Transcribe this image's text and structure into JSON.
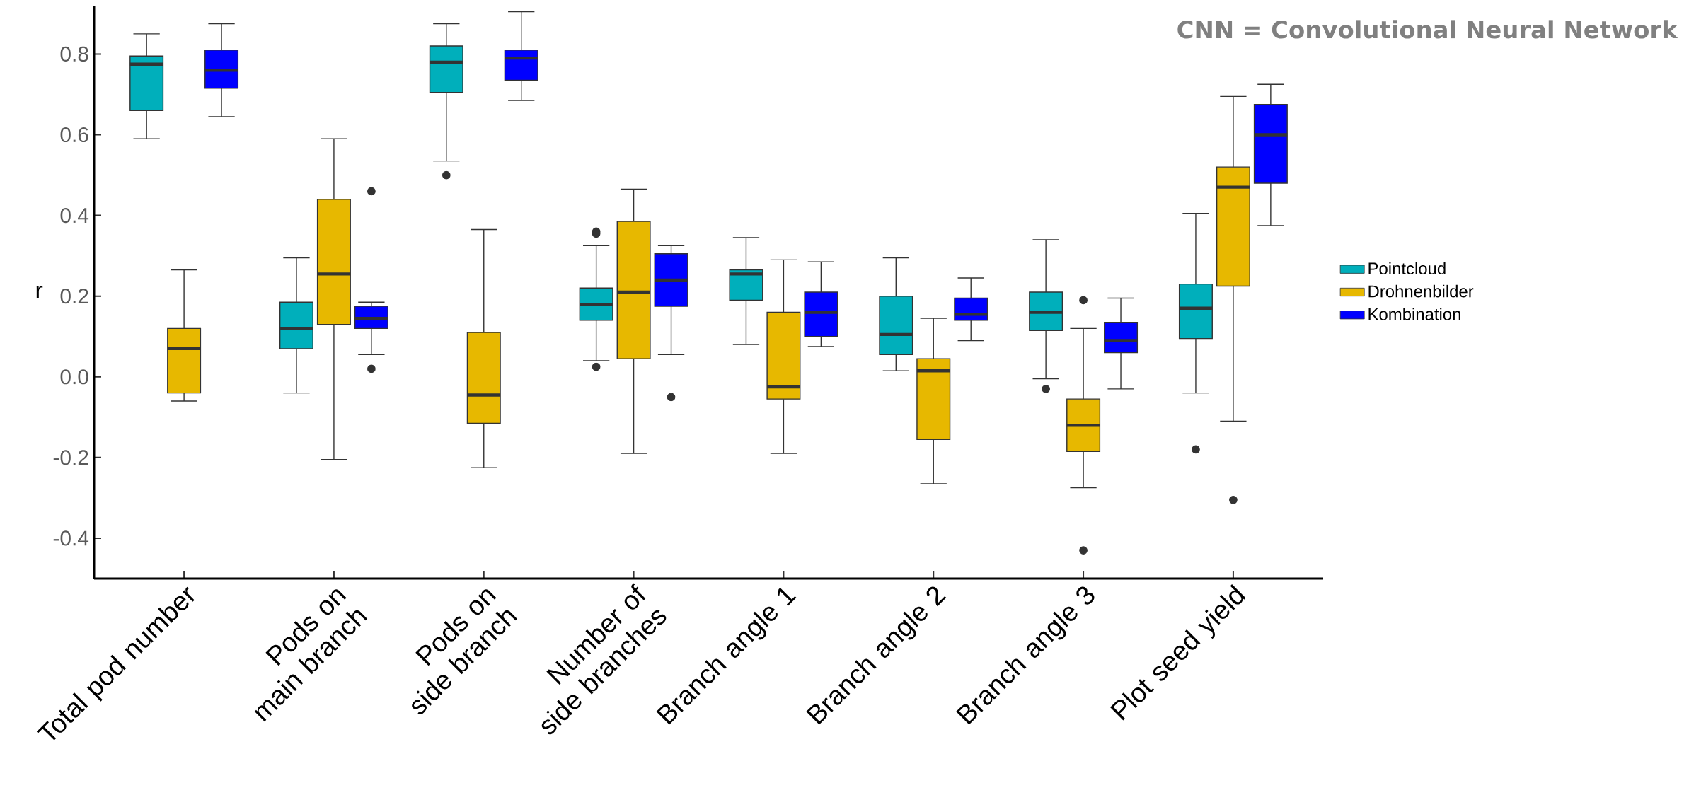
{
  "chart_data": {
    "type": "box",
    "ylabel": "r",
    "annotations": [
      "CNN = Convolutional Neural Network"
    ],
    "categories": [
      "Total pod number",
      "Pods on main branch",
      "Pods on side branch",
      "Number of side branches",
      "Branch angle 1",
      "Branch angle 2",
      "Branch angle 3",
      "Plot seed yield"
    ],
    "ylim": [
      -0.5,
      0.92
    ],
    "yticks": [
      -0.4,
      -0.2,
      {
        "value": 0,
        "label": "0.0"
      },
      0.2,
      0.4,
      0.6,
      0.8
    ],
    "legend": "right",
    "marker": "circle",
    "series": [
      {
        "name": "Pointcloud",
        "color": "#00afbb",
        "boxes": [
          {
            "low": 0.59,
            "q1": 0.66,
            "median": 0.775,
            "q3": 0.795,
            "high": 0.85
          },
          {
            "low": -0.04,
            "q1": 0.07,
            "median": 0.12,
            "q3": 0.185,
            "high": 0.295
          },
          {
            "low": 0.535,
            "q1": 0.705,
            "median": 0.78,
            "q3": 0.82,
            "high": 0.875,
            "outliers": [
              0.5
            ]
          },
          {
            "low": 0.04,
            "q1": 0.14,
            "median": 0.18,
            "q3": 0.22,
            "high": 0.325,
            "outliers": [
              0.36,
              0.355,
              0.025
            ]
          },
          {
            "low": 0.08,
            "q1": 0.19,
            "median": 0.255,
            "q3": 0.265,
            "high": 0.345
          },
          {
            "low": 0.015,
            "q1": 0.055,
            "median": 0.105,
            "q3": 0.2,
            "high": 0.295
          },
          {
            "low": -0.005,
            "q1": 0.115,
            "median": 0.16,
            "q3": 0.21,
            "high": 0.34,
            "outliers": [
              -0.03
            ]
          },
          {
            "low": -0.04,
            "q1": 0.095,
            "median": 0.17,
            "q3": 0.23,
            "high": 0.405,
            "outliers": [
              -0.18
            ]
          }
        ]
      },
      {
        "name": "Drohnenbilder",
        "color": "#e7b800",
        "boxes": [
          {
            "low": -0.06,
            "q1": -0.04,
            "median": 0.07,
            "q3": 0.12,
            "high": 0.265
          },
          {
            "low": -0.205,
            "q1": 0.13,
            "median": 0.255,
            "q3": 0.44,
            "high": 0.59
          },
          {
            "low": -0.225,
            "q1": -0.115,
            "median": -0.045,
            "q3": 0.11,
            "high": 0.365
          },
          {
            "low": -0.19,
            "q1": 0.045,
            "median": 0.21,
            "q3": 0.385,
            "high": 0.465
          },
          {
            "low": -0.19,
            "q1": -0.055,
            "median": -0.025,
            "q3": 0.16,
            "high": 0.29
          },
          {
            "low": -0.265,
            "q1": -0.155,
            "median": 0.015,
            "q3": 0.045,
            "high": 0.145
          },
          {
            "low": -0.275,
            "q1": -0.185,
            "median": -0.12,
            "q3": -0.055,
            "high": 0.12,
            "outliers": [
              0.19,
              -0.43
            ]
          },
          {
            "low": -0.11,
            "q1": 0.225,
            "median": 0.47,
            "q3": 0.52,
            "high": 0.695,
            "outliers": [
              -0.305
            ]
          }
        ]
      },
      {
        "name": "Kombination",
        "color": "#0000ff",
        "boxes": [
          {
            "low": 0.645,
            "q1": 0.715,
            "median": 0.76,
            "q3": 0.81,
            "high": 0.875
          },
          {
            "low": 0.055,
            "q1": 0.12,
            "median": 0.145,
            "q3": 0.175,
            "high": 0.185,
            "outliers": [
              0.46,
              0.02
            ]
          },
          {
            "low": 0.685,
            "q1": 0.735,
            "median": 0.79,
            "q3": 0.81,
            "high": 0.905
          },
          {
            "low": 0.055,
            "q1": 0.175,
            "median": 0.24,
            "q3": 0.305,
            "high": 0.325,
            "outliers": [
              -0.05
            ]
          },
          {
            "low": 0.075,
            "q1": 0.1,
            "median": 0.16,
            "q3": 0.21,
            "high": 0.285
          },
          {
            "low": 0.09,
            "q1": 0.14,
            "median": 0.155,
            "q3": 0.195,
            "high": 0.245
          },
          {
            "low": -0.03,
            "q1": 0.06,
            "median": 0.09,
            "q3": 0.135,
            "high": 0.195
          },
          {
            "low": 0.375,
            "q1": 0.48,
            "median": 0.6,
            "q3": 0.675,
            "high": 0.725
          }
        ]
      }
    ]
  }
}
